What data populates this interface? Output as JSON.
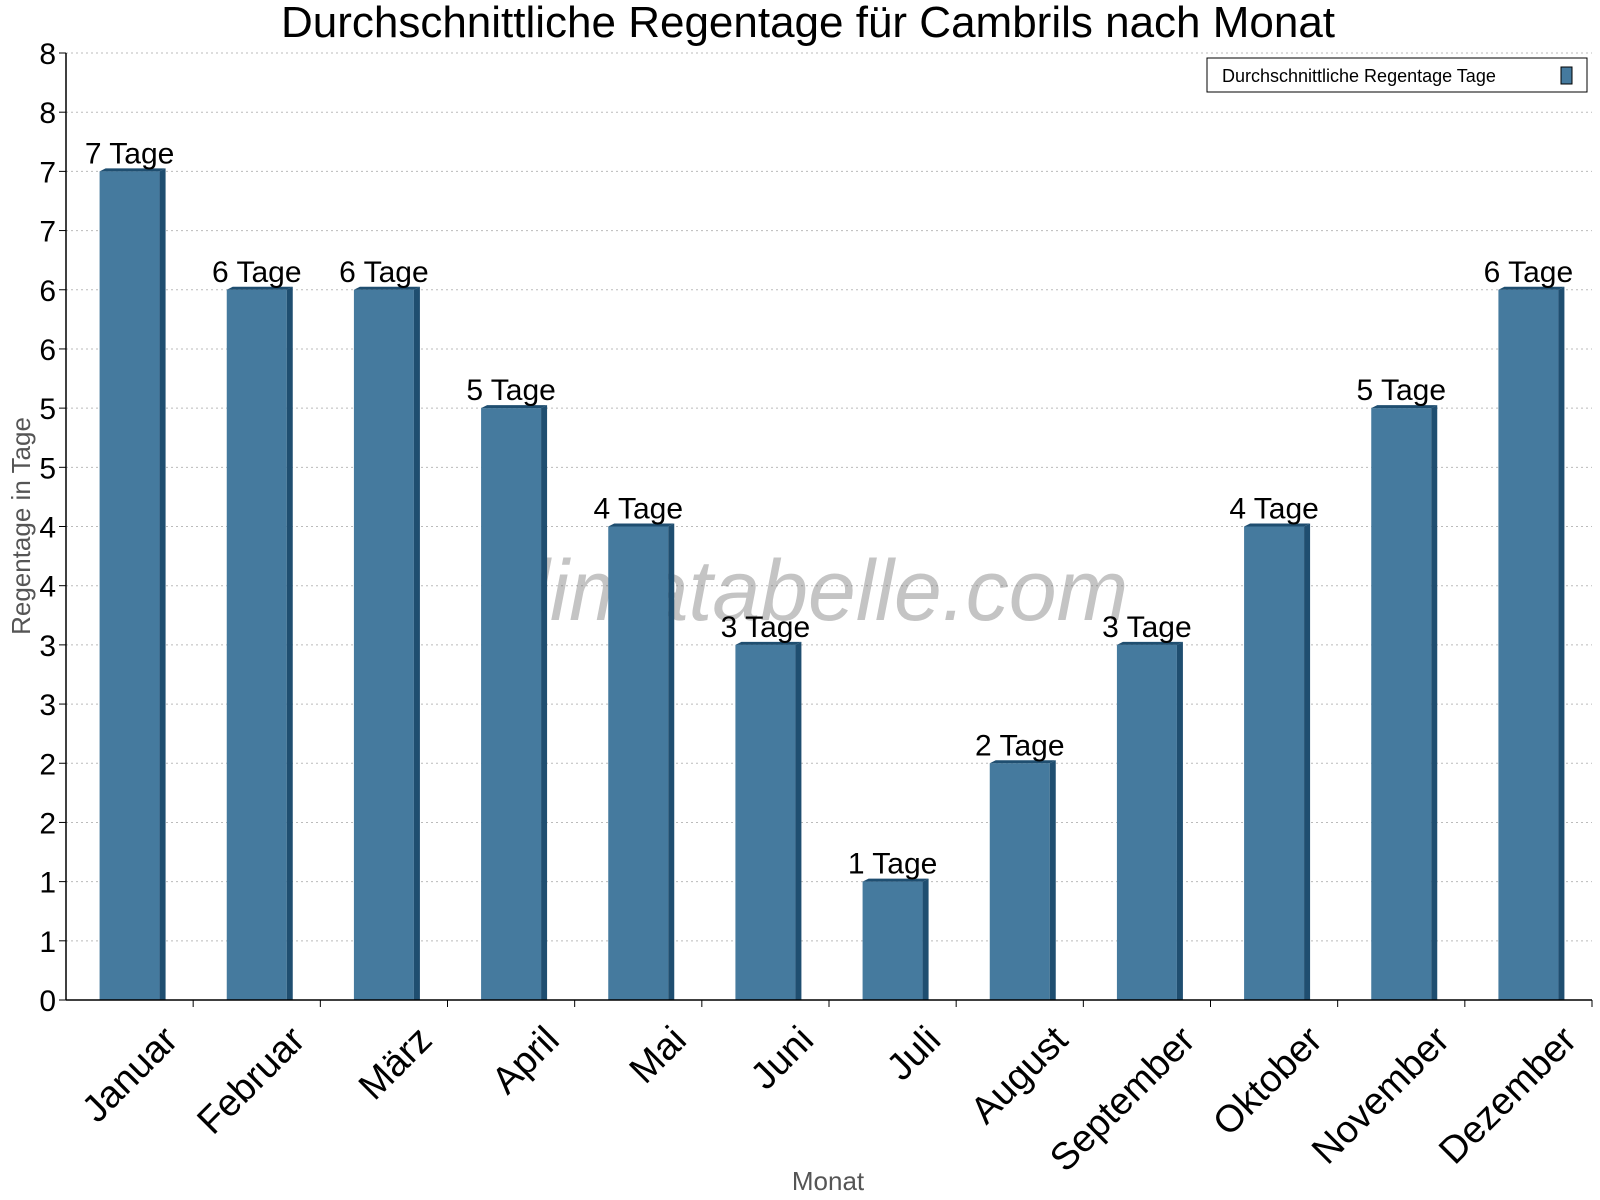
{
  "chart_data": {
    "type": "bar",
    "title": "Durchschnittliche Regentage für Cambrils nach Monat",
    "xlabel": "Monat",
    "ylabel": "Regentage in Tage",
    "categories": [
      "Januar",
      "Februar",
      "März",
      "April",
      "Mai",
      "Juni",
      "Juli",
      "August",
      "September",
      "Oktober",
      "November",
      "Dezember"
    ],
    "series": [
      {
        "name": "Durchschnittliche Regentage Tage",
        "values": [
          7,
          6,
          6,
          5,
          4,
          3,
          1,
          2,
          3,
          4,
          5,
          6
        ],
        "labels": [
          "7 Tage",
          "6 Tage",
          "6 Tage",
          "5 Tage",
          "4 Tage",
          "3 Tage",
          "1 Tage",
          "2 Tage",
          "3 Tage",
          "4 Tage",
          "5 Tage",
          "6 Tage"
        ],
        "color": "#457a9e",
        "side_color": "#1f4e70"
      }
    ],
    "ylim": [
      0,
      8
    ],
    "y_ticks": [
      {
        "value": 0,
        "label": "0"
      },
      {
        "value": 0.5,
        "label": "1"
      },
      {
        "value": 1,
        "label": "1"
      },
      {
        "value": 1.5,
        "label": "2"
      },
      {
        "value": 2,
        "label": "2"
      },
      {
        "value": 2.5,
        "label": "3"
      },
      {
        "value": 3,
        "label": "3"
      },
      {
        "value": 3.5,
        "label": "4"
      },
      {
        "value": 4,
        "label": "4"
      },
      {
        "value": 4.5,
        "label": "5"
      },
      {
        "value": 5,
        "label": "5"
      },
      {
        "value": 5.5,
        "label": "6"
      },
      {
        "value": 6,
        "label": "6"
      },
      {
        "value": 6.5,
        "label": "7"
      },
      {
        "value": 7,
        "label": "7"
      },
      {
        "value": 7.5,
        "label": "8"
      }
    ],
    "grid": true,
    "legend_position": "top-right",
    "watermark": "klimatabelle.com"
  }
}
